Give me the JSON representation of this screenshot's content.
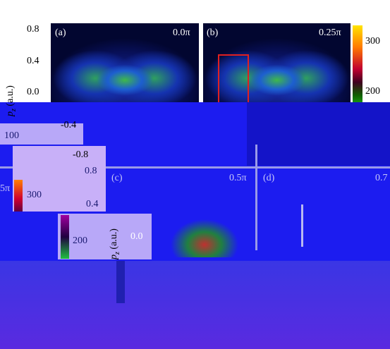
{
  "top": {
    "yticks": [
      "0.8",
      "0.4",
      "0.0",
      "-0.4",
      "-0.8"
    ],
    "ylabel": {
      "p": "p",
      "sub": "z",
      "unit": " (a.u.)"
    },
    "panels": [
      {
        "label": "(a)",
        "phase": "0.0π"
      },
      {
        "label": "(b)",
        "phase": "0.25π"
      }
    ],
    "colorbar": [
      "300",
      "200",
      "100"
    ]
  },
  "bottom": {
    "yticks": [
      "0.8",
      "0.4",
      "0.0"
    ],
    "ylabel": {
      "p": "p",
      "sub": "z",
      "unit": " (a.u.)"
    },
    "panels": [
      {
        "label": "(c)",
        "phase": "0.5π"
      },
      {
        "label": "(d)",
        "phase": "0.7"
      }
    ],
    "colorbar": [
      "300",
      "200"
    ],
    "fragment": "5π"
  }
}
